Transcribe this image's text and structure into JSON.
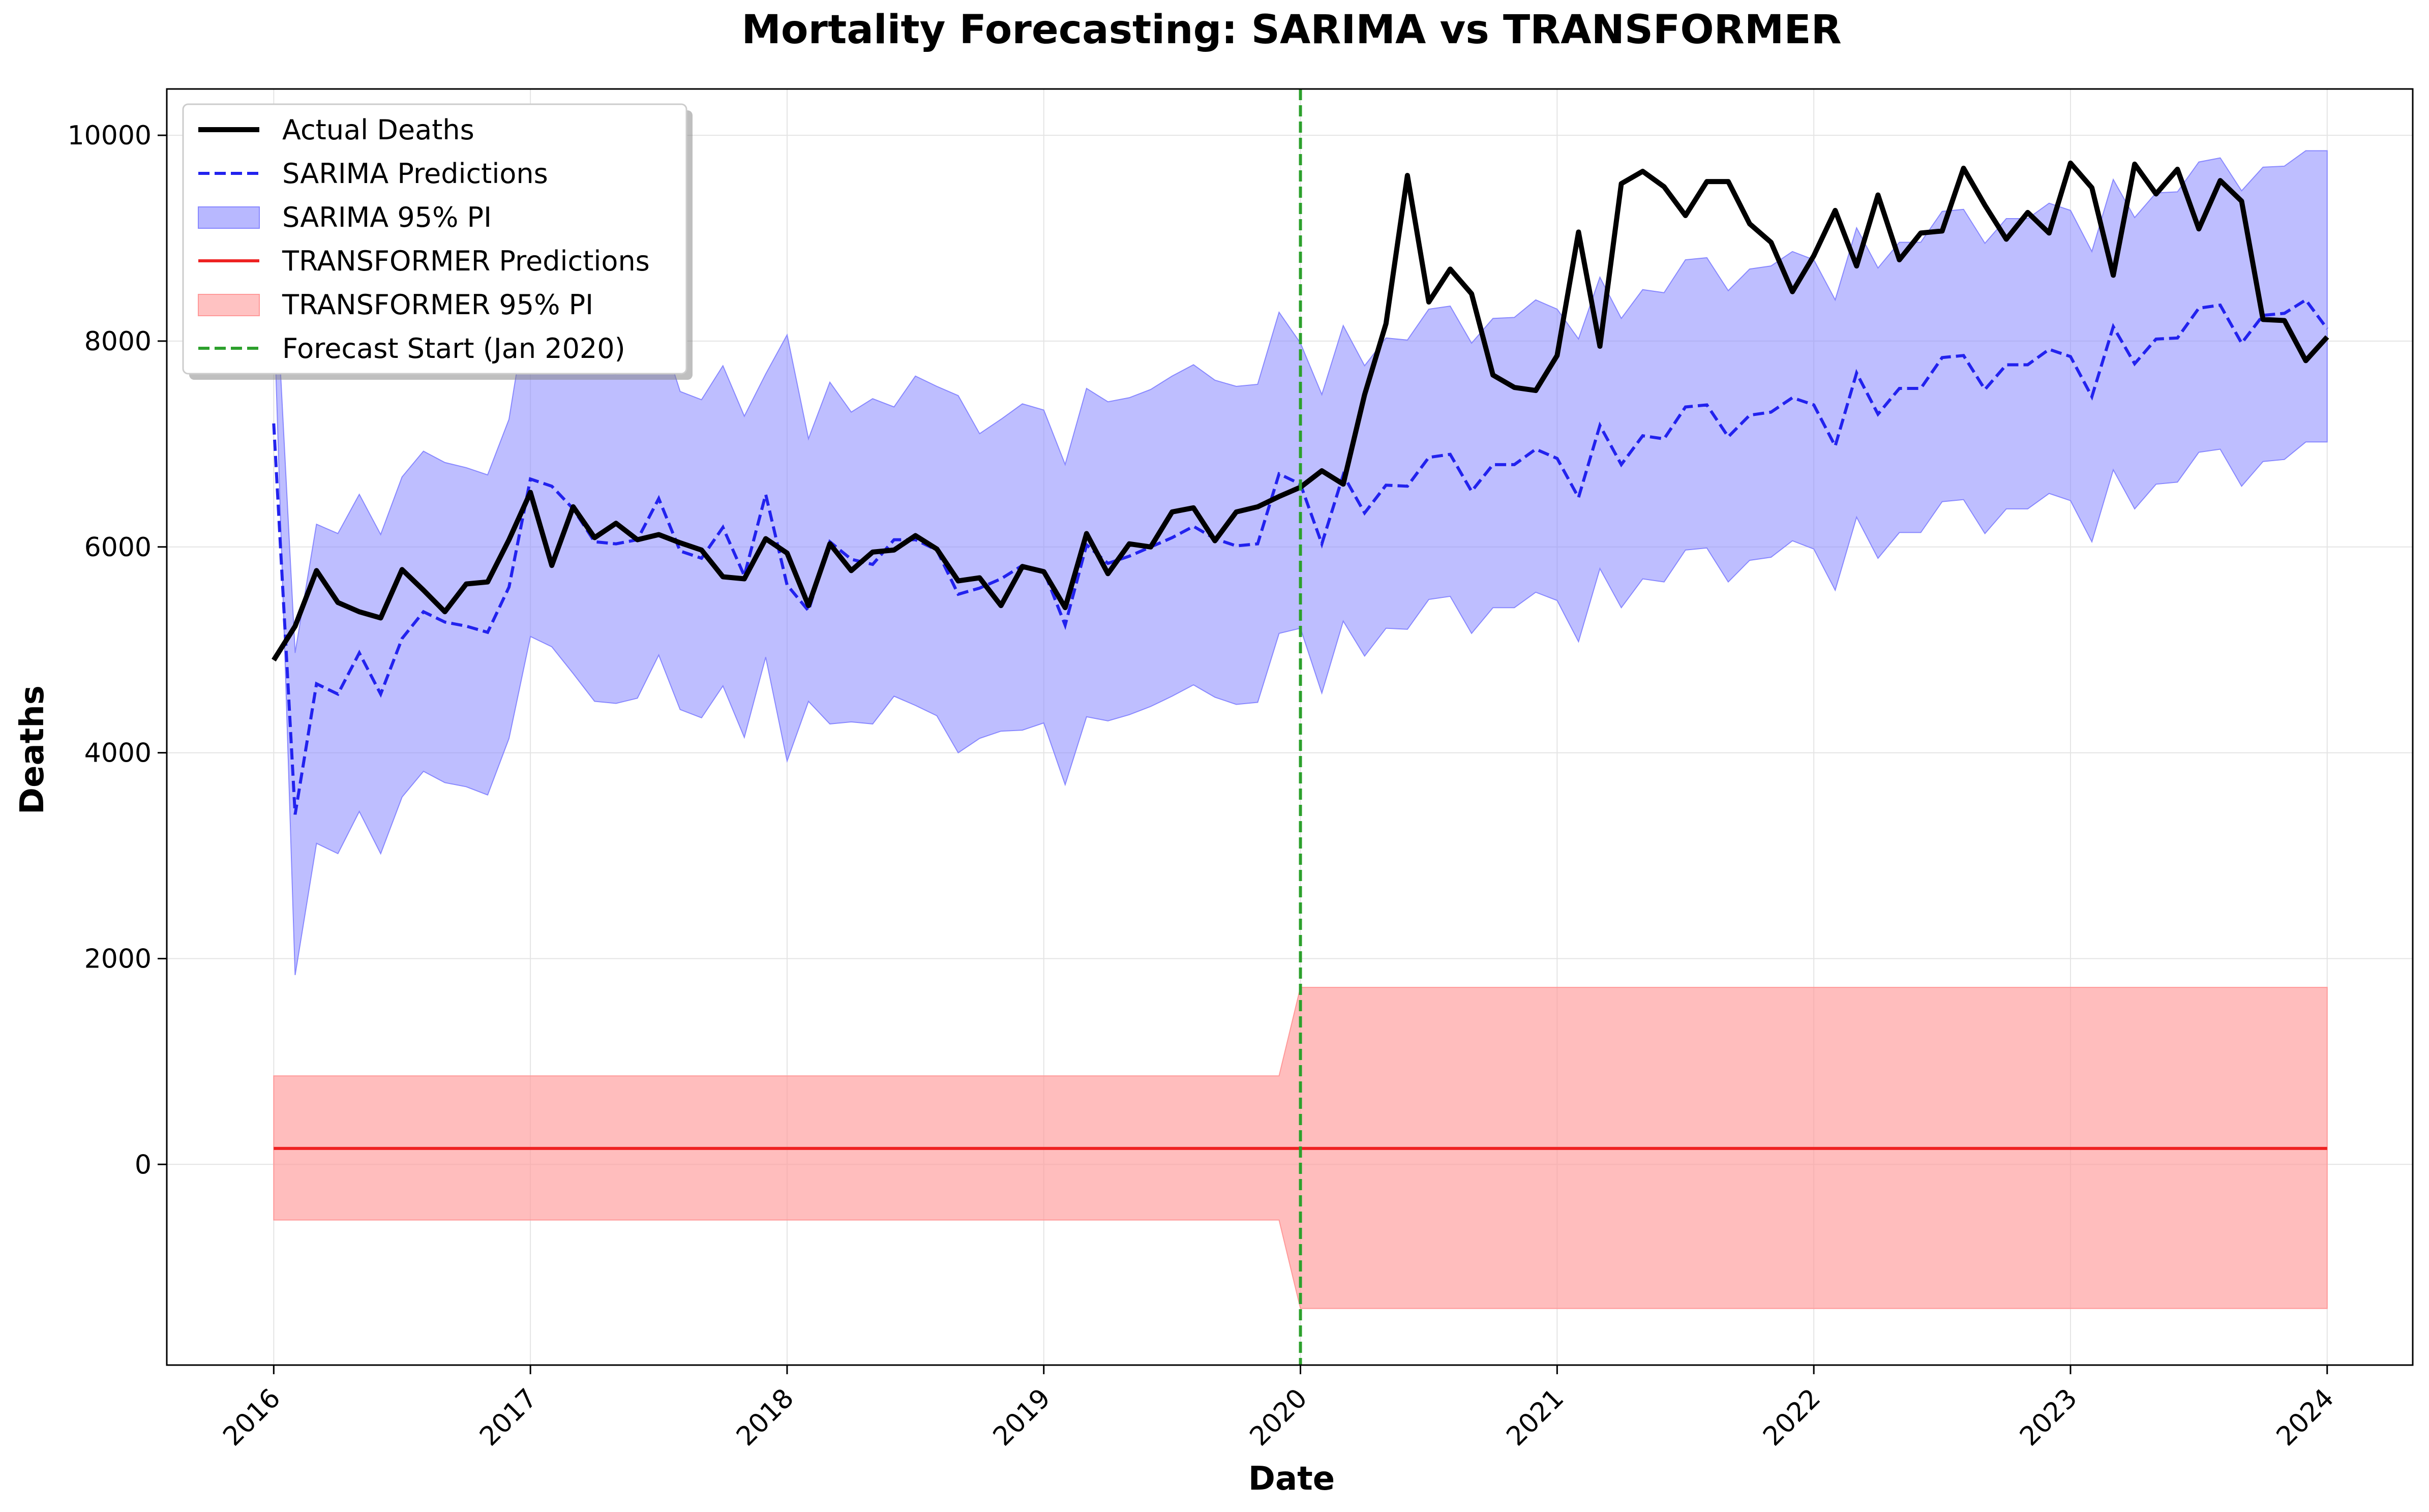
{
  "chart_data": {
    "type": "line",
    "title": "Mortality Forecasting: SARIMA vs TRANSFORMER",
    "xlabel": "Date",
    "ylabel": "Deaths",
    "x_start": "2016-01",
    "x_ticks": [
      "2016",
      "2017",
      "2018",
      "2019",
      "2020",
      "2021",
      "2022",
      "2023",
      "2024"
    ],
    "y_ticks": [
      0,
      2000,
      4000,
      6000,
      8000,
      10000
    ],
    "xlim": [
      "2015-08",
      "2024-05"
    ],
    "ylim": [
      -1950,
      10450
    ],
    "grid": true,
    "legend_position": "top-left",
    "forecast_start": "2020-01",
    "series": [
      {
        "name": "Actual Deaths",
        "color": "#000000",
        "style": "solid",
        "values": [
          4900,
          5230,
          5770,
          5460,
          5370,
          5310,
          5780,
          5580,
          5370,
          5640,
          5660,
          6070,
          6530,
          5820,
          6390,
          6090,
          6230,
          6070,
          6120,
          6040,
          5970,
          5710,
          5690,
          6080,
          5940,
          5430,
          6030,
          5770,
          5950,
          5970,
          6110,
          5980,
          5670,
          5700,
          5430,
          5810,
          5760,
          5410,
          6130,
          5740,
          6030,
          6000,
          6340,
          6380,
          6060,
          6340,
          6390,
          6490,
          6580,
          6740,
          6610,
          7480,
          8170,
          9610,
          8380,
          8700,
          8460,
          7670,
          7550,
          7520,
          7860,
          9060,
          7950,
          9530,
          9650,
          9500,
          9220,
          9550,
          9550,
          9140,
          8960,
          8480,
          8830,
          9270,
          8730,
          9420,
          8790,
          9050,
          9070,
          9680,
          9320,
          8990,
          9250,
          9050,
          9730,
          9490,
          8640,
          9720,
          9430,
          9670,
          9090,
          9560,
          9360,
          8210,
          8200,
          7810,
          8040
        ]
      },
      {
        "name": "SARIMA Predictions",
        "color": "#2222ee",
        "style": "dashed",
        "values": [
          7200,
          3400,
          4670,
          4570,
          4970,
          4570,
          5110,
          5370,
          5270,
          5230,
          5170,
          5610,
          6660,
          6590,
          6370,
          6050,
          6030,
          6070,
          6470,
          5960,
          5890,
          6190,
          5720,
          6510,
          5630,
          5380,
          6050,
          5880,
          5830,
          6070,
          6070,
          5970,
          5540,
          5600,
          5690,
          5820,
          5770,
          5240,
          6020,
          5840,
          5910,
          6000,
          6090,
          6200,
          6080,
          6010,
          6030,
          6710,
          6610,
          6030,
          6700,
          6330,
          6600,
          6590,
          6870,
          6900,
          6540,
          6800,
          6800,
          6950,
          6860,
          6480,
          7180,
          6800,
          7080,
          7050,
          7360,
          7380,
          7070,
          7280,
          7310,
          7450,
          7380,
          6980,
          7690,
          7290,
          7540,
          7540,
          7840,
          7860,
          7530,
          7770,
          7770,
          7920,
          7850,
          7460,
          8140,
          7780,
          8020,
          8030,
          8320,
          8350,
          7980,
          8250,
          8270,
          8400,
          8120
        ]
      },
      {
        "name": "SARIMA 95% PI",
        "color": "#8888ff",
        "type": "band",
        "upper": [
          8960,
          4970,
          6220,
          6130,
          6510,
          6120,
          6680,
          6930,
          6820,
          6770,
          6700,
          7240,
          8530,
          8470,
          8140,
          7690,
          7680,
          7730,
          8160,
          7510,
          7430,
          7760,
          7270,
          7680,
          8060,
          7050,
          7600,
          7310,
          7440,
          7360,
          7660,
          7560,
          7470,
          7100,
          7240,
          7390,
          7330,
          6800,
          7540,
          7410,
          7450,
          7530,
          7660,
          7770,
          7620,
          7560,
          7580,
          8280,
          7980,
          7480,
          8150,
          7760,
          8030,
          8010,
          8310,
          8340,
          7980,
          8220,
          8230,
          8400,
          8310,
          8020,
          8620,
          8220,
          8500,
          8470,
          8790,
          8810,
          8490,
          8700,
          8730,
          8870,
          8790,
          8400,
          9100,
          8710,
          8960,
          8960,
          9260,
          9280,
          8950,
          9190,
          9190,
          9340,
          9270,
          8870,
          9570,
          9200,
          9440,
          9450,
          9740,
          9780,
          9460,
          9690,
          9700,
          9850,
          9850
        ],
        "lower": [
          8350,
          1840,
          3120,
          3020,
          3430,
          3020,
          3570,
          3820,
          3710,
          3670,
          3590,
          4140,
          5130,
          5030,
          4770,
          4500,
          4480,
          4530,
          4950,
          4420,
          4340,
          4650,
          4150,
          4930,
          3920,
          4500,
          4280,
          4300,
          4280,
          4550,
          4460,
          4360,
          4000,
          4140,
          4210,
          4220,
          4290,
          3690,
          4350,
          4310,
          4370,
          4450,
          4550,
          4660,
          4540,
          4470,
          4490,
          5160,
          5210,
          4580,
          5280,
          4940,
          5210,
          5200,
          5490,
          5520,
          5160,
          5410,
          5410,
          5560,
          5480,
          5080,
          5790,
          5410,
          5690,
          5660,
          5970,
          5990,
          5660,
          5870,
          5900,
          6060,
          5980,
          5580,
          6290,
          5890,
          6140,
          6140,
          6440,
          6460,
          6130,
          6370,
          6370,
          6520,
          6450,
          6050,
          6750,
          6370,
          6610,
          6630,
          6920,
          6950,
          6590,
          6830,
          6850,
          7020,
          7020
        ]
      },
      {
        "name": "TRANSFORMER Predictions",
        "color": "#ee2222",
        "style": "solid",
        "value_all_months": 155
      },
      {
        "name": "TRANSFORMER 95% PI",
        "color": "#ff9999",
        "type": "band",
        "upper_before_2020": 860,
        "lower_before_2020": -540,
        "upper_from_2020": 1720,
        "lower_from_2020": -1400
      },
      {
        "name": "Forecast Start (Jan 2020)",
        "color": "#2ca02c",
        "style": "dashed",
        "type": "vline"
      }
    ]
  }
}
